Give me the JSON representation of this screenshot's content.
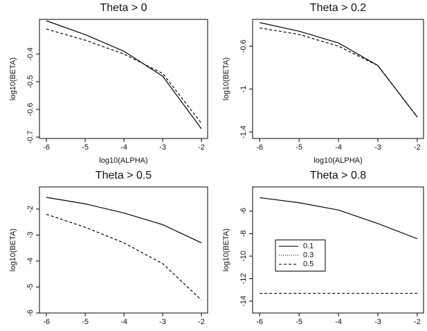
{
  "chart_data": [
    {
      "type": "line",
      "title": "Theta > 0",
      "xlabel": "log10(ALPHA)",
      "ylabel": "log10(BETA)",
      "x": [
        -6,
        -5,
        -4,
        -3,
        -2
      ],
      "xlim": [
        -6.18,
        -1.84
      ],
      "xticks": [
        -6,
        -5,
        -4,
        -3,
        -2
      ],
      "ylim": [
        -0.705,
        -0.275
      ],
      "yticks": [
        -0.4,
        -0.5,
        -0.6,
        -0.7
      ],
      "series": [
        {
          "name": "0.1",
          "color": "#000000",
          "linestyle": "solid",
          "values": [
            -0.28,
            -0.33,
            -0.39,
            -0.48,
            -0.67
          ]
        },
        {
          "name": "0.5",
          "color": "#000000",
          "linestyle": "dashed",
          "values": [
            -0.31,
            -0.35,
            -0.4,
            -0.47,
            -0.65
          ]
        }
      ]
    },
    {
      "type": "line",
      "title": "Theta > 0.2",
      "xlabel": "log10(ALPHA)",
      "ylabel": "log10(BETA)",
      "x": [
        -6,
        -5,
        -4,
        -3,
        -2
      ],
      "xlim": [
        -6.18,
        -1.84
      ],
      "xticks": [
        -6,
        -5,
        -4,
        -3,
        -2
      ],
      "ylim": [
        -1.46,
        -0.35
      ],
      "yticks": [
        -0.6,
        -1.0,
        -1.4
      ],
      "series": [
        {
          "name": "0.1",
          "color": "#000000",
          "linestyle": "solid",
          "values": [
            -0.38,
            -0.46,
            -0.57,
            -0.78,
            -1.26
          ]
        },
        {
          "name": "0.5",
          "color": "#000000",
          "linestyle": "dashed",
          "values": [
            -0.43,
            -0.49,
            -0.6,
            -0.78,
            -1.26
          ]
        }
      ]
    },
    {
      "type": "line",
      "title": "Theta > 0.5",
      "ylabel": "log10(BETA)",
      "x": [
        -6,
        -5,
        -4,
        -3,
        -2
      ],
      "xlim": [
        -6.18,
        -1.84
      ],
      "xticks": [
        -6,
        -5,
        -4,
        -3,
        -2
      ],
      "ylim": [
        -6,
        -1.15
      ],
      "yticks": [
        -2,
        -3,
        -4,
        -5,
        -6
      ],
      "series": [
        {
          "name": "0.1",
          "color": "#000000",
          "linestyle": "solid",
          "values": [
            -1.55,
            -1.8,
            -2.15,
            -2.6,
            -3.3
          ]
        },
        {
          "name": "0.5",
          "color": "#000000",
          "linestyle": "dashed",
          "values": [
            -2.2,
            -2.7,
            -3.3,
            -4.1,
            -5.5
          ]
        }
      ]
    },
    {
      "type": "line",
      "title": "Theta > 0.8",
      "ylabel": "log10(BETA)",
      "x": [
        -6,
        -5,
        -4,
        -3,
        -2
      ],
      "xlim": [
        -6.18,
        -1.84
      ],
      "xticks": [
        -6,
        -5,
        -4,
        -3,
        -2
      ],
      "ylim": [
        -15.05,
        -3.85
      ],
      "yticks": [
        -6,
        -8,
        -10,
        -12,
        -14
      ],
      "legend": "center left",
      "series": [
        {
          "name": "0.1",
          "color": "#000000",
          "linestyle": "solid",
          "values": [
            -4.8,
            -5.25,
            -5.9,
            -7.1,
            -8.45
          ]
        },
        {
          "name": "0.3",
          "color": "#000000",
          "linestyle": "dotted",
          "values": [
            null,
            null,
            null,
            null,
            null
          ]
        },
        {
          "name": "0.5",
          "color": "#000000",
          "linestyle": "dashed",
          "values": [
            -13.3,
            -13.3,
            -13.3,
            -13.3,
            -13.3
          ]
        }
      ]
    }
  ]
}
